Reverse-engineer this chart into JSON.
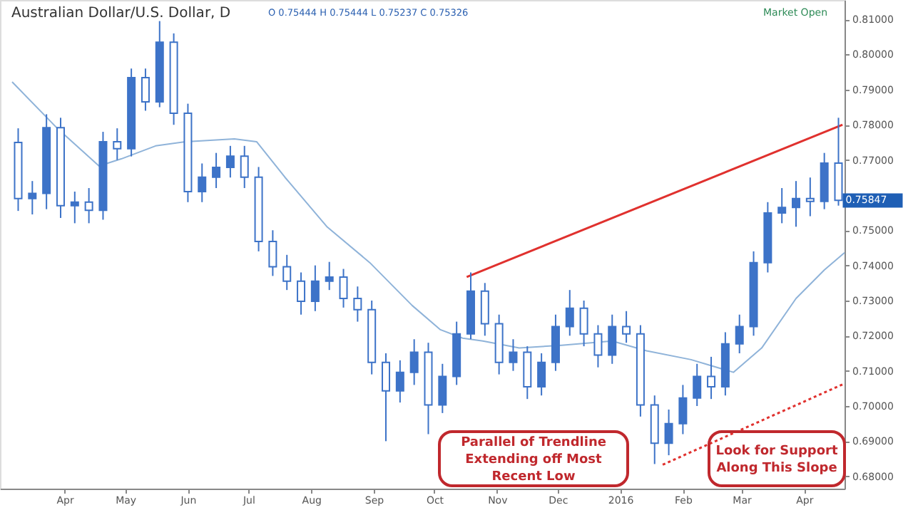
{
  "chart_data": {
    "type": "candlestick",
    "title": "Australian Dollar/U.S. Dollar, D",
    "subtitle": "O 0.75444 H 0.75444 L 0.75237 C 0.75326",
    "annotations": [
      "Market Open",
      {
        "text": "0.75847",
        "x": "2016-04-18",
        "y": 0.75847
      },
      "Parallel of Trendline\nExtending off Most\nRecent Low",
      "Look for Support\nAlong This Slope"
    ],
    "xlim": [
      "2015-02-28",
      "2016-04-21"
    ],
    "xticks": [
      {
        "value": "2015-04-01",
        "label": "Apr"
      },
      {
        "value": "2015-05-01",
        "label": "May"
      },
      {
        "value": "2015-06-01",
        "label": "Jun"
      },
      {
        "value": "2015-07-01",
        "label": "Jul"
      },
      {
        "value": "2015-08-01",
        "label": "Aug"
      },
      {
        "value": "2015-09-01",
        "label": "Sep"
      },
      {
        "value": "2015-10-01",
        "label": "Oct"
      },
      {
        "value": "2015-11-01",
        "label": "Nov"
      },
      {
        "value": "2015-12-01",
        "label": "Dec"
      },
      {
        "value": "2016-01-01",
        "label": "2016"
      },
      {
        "value": "2016-02-01",
        "label": "Feb"
      },
      {
        "value": "2016-03-01",
        "label": "Mar"
      },
      {
        "value": "2016-04-01",
        "label": "Apr"
      }
    ],
    "ylim": [
      0.6765,
      0.8155
    ],
    "yticks": [
      {
        "value": 0.68,
        "label": "0.68000"
      },
      {
        "value": 0.69,
        "label": "0.69000"
      },
      {
        "value": 0.7,
        "label": "0.70000"
      },
      {
        "value": 0.71,
        "label": "0.71000"
      },
      {
        "value": 0.72,
        "label": "0.72000"
      },
      {
        "value": 0.73,
        "label": "0.73000"
      },
      {
        "value": 0.74,
        "label": "0.74000"
      },
      {
        "value": 0.75,
        "label": "0.75000"
      },
      {
        "value": 0.76,
        "label": null
      },
      {
        "value": 0.77,
        "label": "0.77000"
      },
      {
        "value": 0.78,
        "label": "0.78000"
      },
      {
        "value": 0.79,
        "label": "0.79000"
      },
      {
        "value": 0.8,
        "label": "0.80000"
      },
      {
        "value": 0.81,
        "label": "0.81000"
      }
    ],
    "grid": false,
    "series": [
      {
        "type": "line",
        "color": "#8fb3d9",
        "x": [
          "2015-03-06",
          "2015-03-28",
          "2015-04-18",
          "2015-04-29",
          "2015-05-16",
          "2015-05-31",
          "2015-06-24",
          "2015-07-05",
          "2015-07-19",
          "2015-08-09",
          "2015-08-30",
          "2015-09-20",
          "2015-10-04",
          "2015-10-15",
          "2015-10-25",
          "2015-11-12",
          "2015-12-03",
          "2015-12-28",
          "2016-01-14",
          "2016-02-05",
          "2016-02-26",
          "2016-03-11",
          "2016-03-28",
          "2016-04-11",
          "2016-04-21"
        ],
        "values": [
          0.7922,
          0.7792,
          0.7683,
          0.7703,
          0.774,
          0.7752,
          0.776,
          0.7752,
          0.7651,
          0.7509,
          0.7408,
          0.7286,
          0.7217,
          0.7193,
          0.7185,
          0.7165,
          0.7173,
          0.7185,
          0.7157,
          0.7132,
          0.7096,
          0.7165,
          0.7306,
          0.7387,
          0.7436
        ]
      },
      {
        "color": "#3d73c8",
        "x": [
          "2015-03-09",
          "2015-03-16",
          "2015-03-23",
          "2015-03-30",
          "2015-04-06",
          "2015-04-13",
          "2015-04-20",
          "2015-04-27",
          "2015-05-04",
          "2015-05-11",
          "2015-05-18",
          "2015-05-25",
          "2015-06-01",
          "2015-06-08",
          "2015-06-15",
          "2015-06-22",
          "2015-06-29",
          "2015-07-06",
          "2015-07-13",
          "2015-07-20",
          "2015-07-27",
          "2015-08-03",
          "2015-08-10",
          "2015-08-17",
          "2015-08-24",
          "2015-08-31",
          "2015-09-07",
          "2015-09-14",
          "2015-09-21",
          "2015-09-28",
          "2015-10-05",
          "2015-10-12",
          "2015-10-19",
          "2015-10-26",
          "2015-11-02",
          "2015-11-09",
          "2015-11-16",
          "2015-11-23",
          "2015-11-30",
          "2015-12-07",
          "2015-12-14",
          "2015-12-21",
          "2015-12-28",
          "2016-01-04",
          "2016-01-11",
          "2016-01-18",
          "2016-01-25",
          "2016-02-01",
          "2016-02-08",
          "2016-02-15",
          "2016-02-22",
          "2016-02-29",
          "2016-03-07",
          "2016-03-14",
          "2016-03-21",
          "2016-03-28",
          "2016-04-04",
          "2016-04-11",
          "2016-04-18"
        ],
        "ohlc": [
          [
            0.775,
            0.779,
            0.7555,
            0.759
          ],
          [
            0.759,
            0.764,
            0.7545,
            0.7605
          ],
          [
            0.7605,
            0.783,
            0.756,
            0.7792
          ],
          [
            0.7792,
            0.782,
            0.7535,
            0.757
          ],
          [
            0.757,
            0.761,
            0.752,
            0.758
          ],
          [
            0.758,
            0.762,
            0.752,
            0.7557
          ],
          [
            0.7557,
            0.778,
            0.753,
            0.7752
          ],
          [
            0.7752,
            0.779,
            0.77,
            0.7732
          ],
          [
            0.7732,
            0.796,
            0.771,
            0.7934
          ],
          [
            0.7934,
            0.796,
            0.784,
            0.7865
          ],
          [
            0.7865,
            0.8095,
            0.785,
            0.8035
          ],
          [
            0.8035,
            0.806,
            0.78,
            0.7833
          ],
          [
            0.7833,
            0.786,
            0.758,
            0.761
          ],
          [
            0.761,
            0.769,
            0.758,
            0.7651
          ],
          [
            0.7651,
            0.772,
            0.762,
            0.7679
          ],
          [
            0.7679,
            0.774,
            0.765,
            0.7711
          ],
          [
            0.7711,
            0.774,
            0.762,
            0.7651
          ],
          [
            0.7651,
            0.768,
            0.744,
            0.7468
          ],
          [
            0.7468,
            0.75,
            0.737,
            0.7396
          ],
          [
            0.7396,
            0.743,
            0.733,
            0.7355
          ],
          [
            0.7355,
            0.738,
            0.726,
            0.7298
          ],
          [
            0.7298,
            0.74,
            0.727,
            0.7355
          ],
          [
            0.7355,
            0.741,
            0.733,
            0.7367
          ],
          [
            0.7367,
            0.739,
            0.728,
            0.7306
          ],
          [
            0.7306,
            0.734,
            0.724,
            0.7274
          ],
          [
            0.7274,
            0.73,
            0.709,
            0.7124
          ],
          [
            0.7124,
            0.715,
            0.69,
            0.7043
          ],
          [
            0.7043,
            0.713,
            0.701,
            0.7096
          ],
          [
            0.7096,
            0.719,
            0.706,
            0.7153
          ],
          [
            0.7153,
            0.718,
            0.692,
            0.7003
          ],
          [
            0.7003,
            0.712,
            0.698,
            0.7084
          ],
          [
            0.7084,
            0.724,
            0.706,
            0.7205
          ],
          [
            0.7205,
            0.738,
            0.719,
            0.7327
          ],
          [
            0.7327,
            0.735,
            0.72,
            0.7234
          ],
          [
            0.7234,
            0.726,
            0.709,
            0.7124
          ],
          [
            0.7124,
            0.719,
            0.71,
            0.7153
          ],
          [
            0.7153,
            0.717,
            0.702,
            0.7055
          ],
          [
            0.7055,
            0.715,
            0.703,
            0.7124
          ],
          [
            0.7124,
            0.726,
            0.71,
            0.7226
          ],
          [
            0.7226,
            0.733,
            0.72,
            0.7278
          ],
          [
            0.7278,
            0.73,
            0.717,
            0.7205
          ],
          [
            0.7205,
            0.723,
            0.711,
            0.7145
          ],
          [
            0.7145,
            0.726,
            0.712,
            0.7226
          ],
          [
            0.7226,
            0.727,
            0.718,
            0.7205
          ],
          [
            0.7205,
            0.723,
            0.697,
            0.7003
          ],
          [
            0.7003,
            0.703,
            0.6835,
            0.6894
          ],
          [
            0.6894,
            0.699,
            0.686,
            0.695
          ],
          [
            0.695,
            0.706,
            0.692,
            0.7023
          ],
          [
            0.7023,
            0.712,
            0.7,
            0.7084
          ],
          [
            0.7084,
            0.714,
            0.702,
            0.7055
          ],
          [
            0.7055,
            0.721,
            0.703,
            0.7177
          ],
          [
            0.7177,
            0.726,
            0.715,
            0.7226
          ],
          [
            0.7226,
            0.744,
            0.72,
            0.7408
          ],
          [
            0.7408,
            0.758,
            0.738,
            0.7549
          ],
          [
            0.7549,
            0.762,
            0.752,
            0.7565
          ],
          [
            0.7565,
            0.764,
            0.751,
            0.759
          ],
          [
            0.759,
            0.765,
            0.754,
            0.7582
          ],
          [
            0.7582,
            0.772,
            0.756,
            0.7691
          ],
          [
            0.7691,
            0.782,
            0.757,
            0.7585
          ]
        ]
      },
      {
        "type": "line",
        "color": "#e0312e",
        "line_style": "solid",
        "x": [
          "2015-10-17",
          "2016-04-20"
        ],
        "values": [
          0.7367,
          0.78
        ]
      },
      {
        "type": "line",
        "color": "#e0312e",
        "line_style": "dotted",
        "x": [
          "2016-01-22",
          "2016-04-21"
        ],
        "values": [
          0.6833,
          0.7064
        ]
      }
    ]
  }
}
